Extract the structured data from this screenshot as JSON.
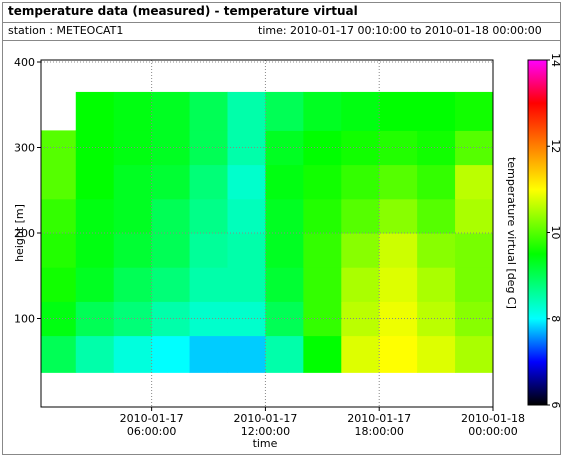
{
  "chart_data": {
    "type": "heatmap",
    "title": "temperature data (measured) - temperature virtual",
    "station": "station : METEOCAT1",
    "time_range": "time: 2010-01-17 00:10:00 to 2010-01-18 00:00:00",
    "xlabel": "time",
    "ylabel": "height [m]",
    "zlabel": "temperature virtual [deg C]",
    "xlim": [
      "2010-01-17 00:10:00",
      "2010-01-18 00:00:00"
    ],
    "xticks": [
      {
        "value": "2010-01-17 06:00:00",
        "label": [
          "2010-01-17",
          "06:00:00"
        ]
      },
      {
        "value": "2010-01-17 12:00:00",
        "label": [
          "2010-01-17",
          "12:00:00"
        ]
      },
      {
        "value": "2010-01-17 18:00:00",
        "label": [
          "2010-01-17",
          "18:00:00"
        ]
      },
      {
        "value": "2010-01-18 00:00:00",
        "label": [
          "2010-01-18",
          "00:00:00"
        ]
      }
    ],
    "ylim": [
      0,
      400
    ],
    "yticks": [
      100,
      200,
      300,
      400
    ],
    "zlim": [
      6,
      14
    ],
    "zticks": [
      6,
      8,
      10,
      12,
      14
    ],
    "grid": true,
    "colorscale": [
      [
        6,
        "#000000"
      ],
      [
        7,
        "#0000ff"
      ],
      [
        8,
        "#00ffff"
      ],
      [
        9.5,
        "#00ff00"
      ],
      [
        11,
        "#ffff00"
      ],
      [
        12,
        "#ff8000"
      ],
      [
        13,
        "#ff0000"
      ],
      [
        14,
        "#ff00ff"
      ]
    ],
    "x": [
      "2010-01-17 00:10:00",
      "2010-01-17 02:00:00",
      "2010-01-17 04:00:00",
      "2010-01-17 06:00:00",
      "2010-01-17 08:00:00",
      "2010-01-17 10:00:00",
      "2010-01-17 12:00:00",
      "2010-01-17 14:00:00",
      "2010-01-17 16:00:00",
      "2010-01-17 18:00:00",
      "2010-01-17 20:00:00",
      "2010-01-17 22:00:00",
      "2010-01-18 00:00:00"
    ],
    "y": [
      37,
      80,
      120,
      160,
      200,
      240,
      280,
      320,
      365
    ],
    "values": [
      [
        9.0,
        8.5,
        8.2,
        8.0,
        7.8,
        7.8,
        8.5,
        9.5,
        10.8,
        11.0,
        10.8,
        10.5
      ],
      [
        9.4,
        9.0,
        8.8,
        8.5,
        8.3,
        8.3,
        9.0,
        9.8,
        10.6,
        10.9,
        10.6,
        10.3
      ],
      [
        9.6,
        9.3,
        9.0,
        8.8,
        8.5,
        8.5,
        9.2,
        9.8,
        10.5,
        10.8,
        10.5,
        10.2
      ],
      [
        9.7,
        9.4,
        9.2,
        9.0,
        8.6,
        8.5,
        9.3,
        9.8,
        10.3,
        10.7,
        10.3,
        10.2
      ],
      [
        9.8,
        9.4,
        9.3,
        9.0,
        8.7,
        8.4,
        9.3,
        9.7,
        10.0,
        10.3,
        10.0,
        10.5
      ],
      [
        10.0,
        9.5,
        9.3,
        9.2,
        8.8,
        8.3,
        9.4,
        9.6,
        9.8,
        10.0,
        9.8,
        10.6
      ],
      [
        10.0,
        9.5,
        9.4,
        9.3,
        9.0,
        8.5,
        9.3,
        9.5,
        9.6,
        9.7,
        9.6,
        10.0
      ],
      [
        null,
        9.5,
        9.4,
        9.3,
        9.0,
        8.5,
        9.0,
        9.3,
        9.4,
        9.5,
        9.5,
        9.6
      ]
    ]
  }
}
